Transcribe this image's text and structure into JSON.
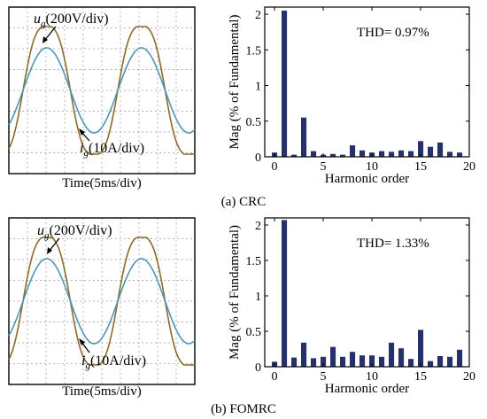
{
  "captions": {
    "a": "(a) CRC",
    "b": "(b) FOMRC"
  },
  "waveform": {
    "xlabel": "Time(5ms/div)",
    "voltage_label": {
      "sym": "u",
      "sub": "g",
      "rest": "(200V/div)"
    },
    "current_label": {
      "sym": "i",
      "sub": "g",
      "rest": "(10A/div)"
    },
    "colors": {
      "voltage": "#8b6a2b",
      "current": "#4f95b6",
      "grid": "#9a9a9a"
    }
  },
  "chart_data": [
    {
      "type": "bar",
      "panel": "a",
      "thd_label": "THD= 0.97%",
      "xlabel": "Harmonic order",
      "ylabel": "Mag (% of Fundamental)",
      "xlim": [
        -1,
        20
      ],
      "ylim": [
        0,
        2.1
      ],
      "xticks": [
        0,
        5,
        10,
        15,
        20
      ],
      "xtick_labels": [
        "0",
        "5",
        "10",
        "15",
        "20"
      ],
      "yticks": [
        0,
        0.5,
        1,
        1.5,
        2
      ],
      "ytick_labels": [
        "0",
        "0.5",
        "1",
        "1.5",
        "2"
      ],
      "bar_color": "#26306b",
      "x": [
        0,
        1,
        2,
        3,
        4,
        5,
        6,
        7,
        8,
        9,
        10,
        11,
        12,
        13,
        14,
        15,
        16,
        17,
        18,
        19
      ],
      "values": [
        0.06,
        2.05,
        0.03,
        0.55,
        0.08,
        0.03,
        0.04,
        0.03,
        0.16,
        0.09,
        0.06,
        0.08,
        0.07,
        0.09,
        0.08,
        0.22,
        0.14,
        0.2,
        0.07,
        0.06
      ]
    },
    {
      "type": "bar",
      "panel": "b",
      "thd_label": "THD= 1.33%",
      "xlabel": "Harmonic order",
      "ylabel": "Mag (% of Fundamental)",
      "xlim": [
        -1,
        20
      ],
      "ylim": [
        0,
        2.1
      ],
      "xticks": [
        0,
        5,
        10,
        15,
        20
      ],
      "xtick_labels": [
        "0",
        "5",
        "10",
        "15",
        "20"
      ],
      "yticks": [
        0,
        0.5,
        1,
        1.5,
        2
      ],
      "ytick_labels": [
        "0",
        "0.5",
        "1",
        "1.5",
        "2"
      ],
      "bar_color": "#26306b",
      "x": [
        0,
        1,
        2,
        3,
        4,
        5,
        6,
        7,
        8,
        9,
        10,
        11,
        12,
        13,
        14,
        15,
        16,
        17,
        18,
        19
      ],
      "values": [
        0.07,
        2.07,
        0.13,
        0.34,
        0.12,
        0.14,
        0.28,
        0.14,
        0.21,
        0.16,
        0.16,
        0.14,
        0.34,
        0.26,
        0.11,
        0.52,
        0.08,
        0.15,
        0.14,
        0.24
      ]
    }
  ]
}
